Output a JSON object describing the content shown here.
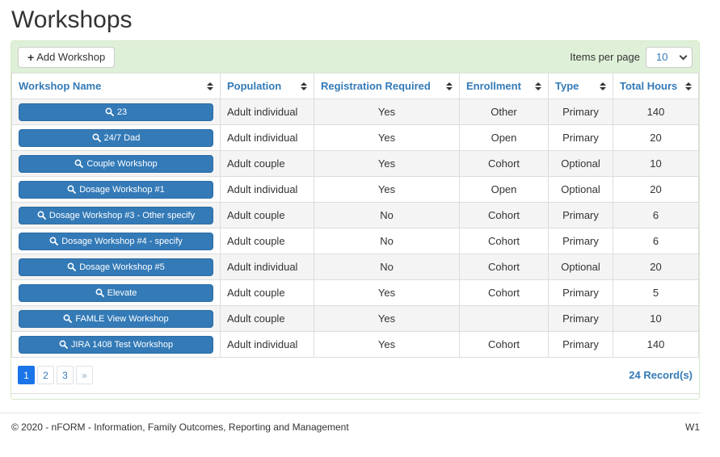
{
  "page": {
    "title": "Workshops",
    "footer": {
      "copyright": "© 2020 - nFORM - Information, Family Outcomes, Reporting and Management",
      "version": "W1"
    }
  },
  "toolbar": {
    "add_workshop_label": "Add Workshop",
    "add_workshop_icon": "+",
    "items_per_page_label": "Items per page",
    "items_per_page_value": "10"
  },
  "table": {
    "columns": [
      {
        "key": "name",
        "label": "Workshop Name",
        "align": "left",
        "sortable": true
      },
      {
        "key": "population",
        "label": "Population",
        "align": "left",
        "sortable": true
      },
      {
        "key": "registration_required",
        "label": "Registration Required",
        "align": "center",
        "sortable": true
      },
      {
        "key": "enrollment",
        "label": "Enrollment",
        "align": "center",
        "sortable": true
      },
      {
        "key": "type",
        "label": "Type",
        "align": "center",
        "sortable": true
      },
      {
        "key": "total_hours",
        "label": "Total Hours",
        "align": "center",
        "sortable": true
      }
    ],
    "rows": [
      {
        "name": "23",
        "population": "Adult individual",
        "registration_required": "Yes",
        "enrollment": "Other",
        "type": "Primary",
        "total_hours": "140"
      },
      {
        "name": "24/7 Dad",
        "population": "Adult individual",
        "registration_required": "Yes",
        "enrollment": "Open",
        "type": "Primary",
        "total_hours": "20"
      },
      {
        "name": "Couple Workshop",
        "population": "Adult couple",
        "registration_required": "Yes",
        "enrollment": "Cohort",
        "type": "Optional",
        "total_hours": "10"
      },
      {
        "name": "Dosage Workshop #1",
        "population": "Adult individual",
        "registration_required": "Yes",
        "enrollment": "Open",
        "type": "Optional",
        "total_hours": "20"
      },
      {
        "name": "Dosage Workshop #3 - Other specify",
        "population": "Adult couple",
        "registration_required": "No",
        "enrollment": "Cohort",
        "type": "Primary",
        "total_hours": "6"
      },
      {
        "name": "Dosage Workshop #4 - specify",
        "population": "Adult couple",
        "registration_required": "No",
        "enrollment": "Cohort",
        "type": "Primary",
        "total_hours": "6"
      },
      {
        "name": "Dosage Workshop #5",
        "population": "Adult individual",
        "registration_required": "No",
        "enrollment": "Cohort",
        "type": "Optional",
        "total_hours": "20"
      },
      {
        "name": "Elevate",
        "population": "Adult couple",
        "registration_required": "Yes",
        "enrollment": "Cohort",
        "type": "Primary",
        "total_hours": "5"
      },
      {
        "name": "FAMLE View Workshop",
        "population": "Adult couple",
        "registration_required": "Yes",
        "enrollment": "",
        "type": "Primary",
        "total_hours": "10"
      },
      {
        "name": "JIRA 1408 Test Workshop",
        "population": "Adult individual",
        "registration_required": "Yes",
        "enrollment": "Cohort",
        "type": "Primary",
        "total_hours": "140"
      }
    ]
  },
  "pagination": {
    "pages": [
      "1",
      "2",
      "3",
      "»"
    ],
    "active_page": "1",
    "records_label": "24 Record(s)"
  },
  "colors": {
    "header_link_blue": "#337ab7",
    "workshop_button_blue": "#337ab7",
    "workshop_button_border": "#2e6da4",
    "active_page_blue": "#1b74e8",
    "panel_heading_bg": "#dff0d8",
    "panel_border": "#d6e9c6",
    "row_stripe": "#f4f4f4",
    "table_border": "#dddddd"
  }
}
